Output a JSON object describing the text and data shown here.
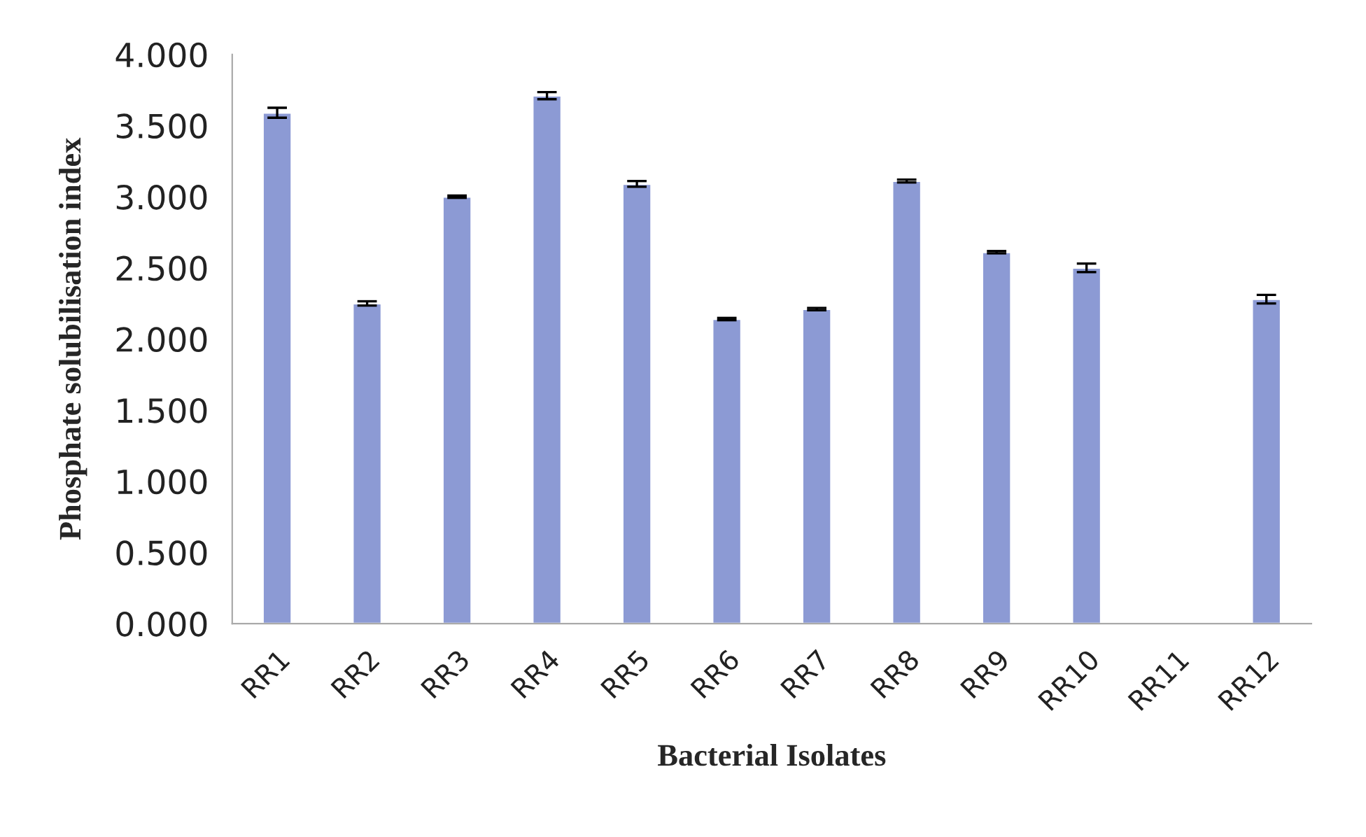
{
  "chart_data": {
    "type": "bar",
    "xlabel": "Bacterial Isolates",
    "ylabel": "Phosphate solubilisation index",
    "categories": [
      "RR1",
      "RR2",
      "RR3",
      "RR4",
      "RR5",
      "RR6",
      "RR7",
      "RR8",
      "RR9",
      "RR10",
      "RR11",
      "RR12"
    ],
    "values": [
      3.59,
      2.25,
      3.0,
      3.71,
      3.09,
      2.14,
      2.21,
      3.11,
      2.61,
      2.5,
      null,
      2.28
    ],
    "errors": [
      0.035,
      0.015,
      0.008,
      0.025,
      0.02,
      0.008,
      0.008,
      0.01,
      0.008,
      0.03,
      null,
      0.03
    ],
    "color": "#8c9ad4",
    "ylim": [
      0,
      4
    ],
    "yticks": [
      {
        "value": 0,
        "label": "0.000"
      },
      {
        "value": 0.5,
        "label": "0.500"
      },
      {
        "value": 1,
        "label": "1.000"
      },
      {
        "value": 1.5,
        "label": "1.500"
      },
      {
        "value": 2,
        "label": "2.000"
      },
      {
        "value": 2.5,
        "label": "2.500"
      },
      {
        "value": 3,
        "label": "3.000"
      },
      {
        "value": 3.5,
        "label": "3.500"
      },
      {
        "value": 4,
        "label": "4.000"
      }
    ],
    "grid": false,
    "legend": false
  }
}
